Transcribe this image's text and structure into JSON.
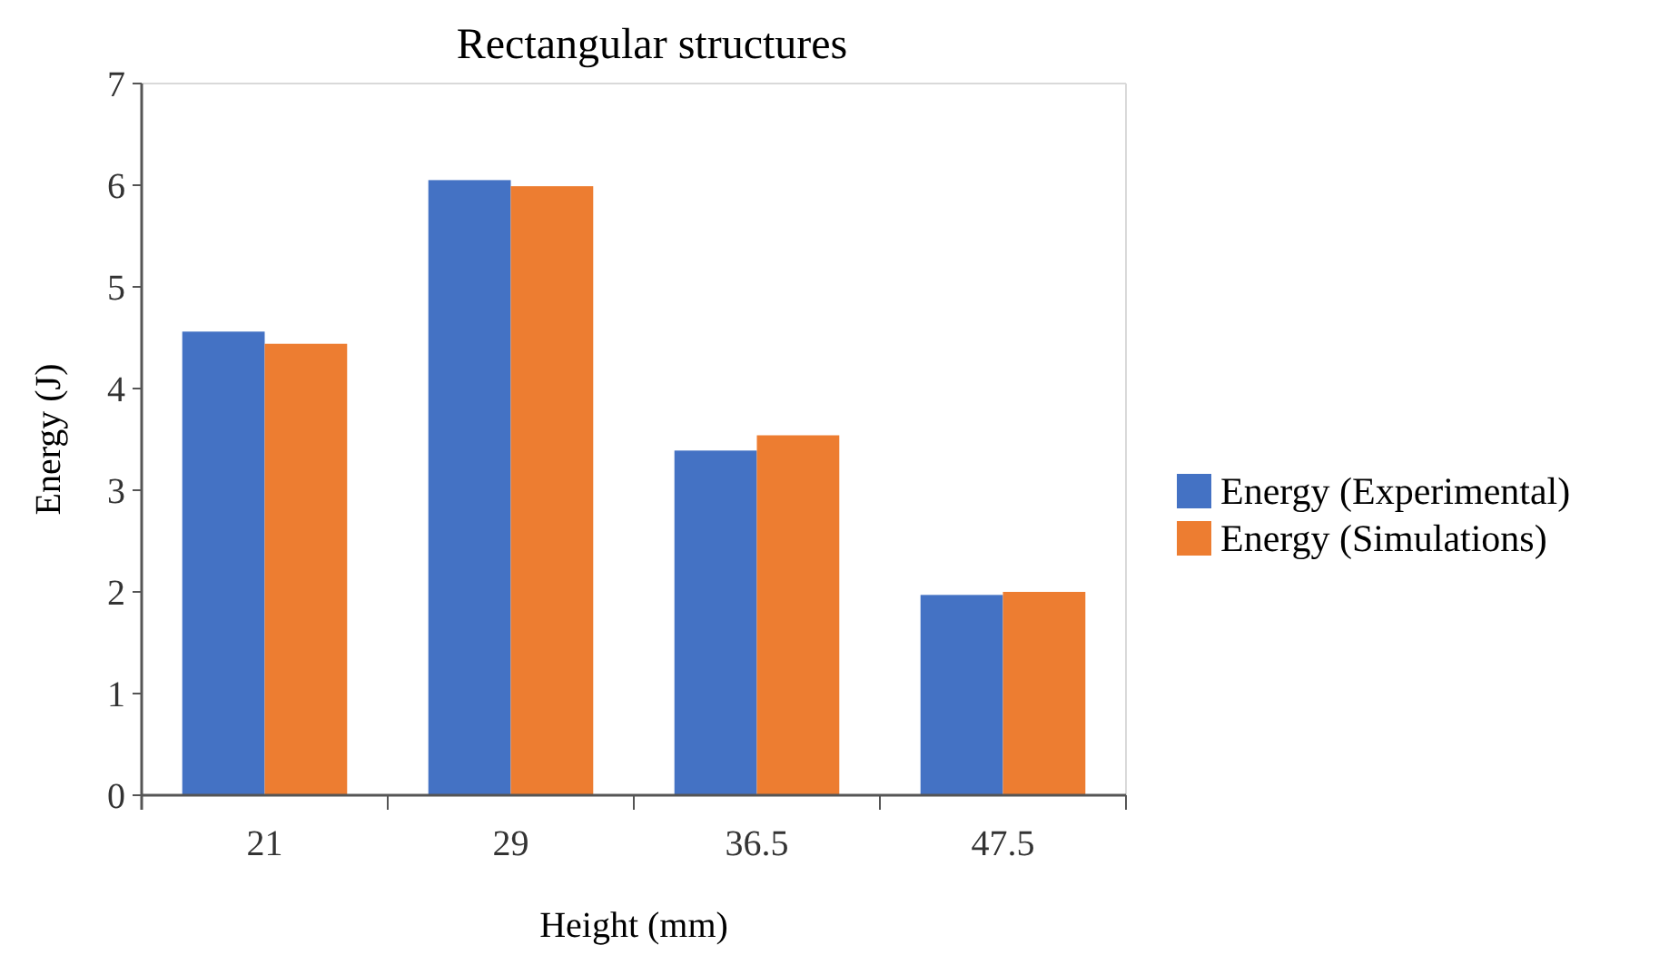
{
  "chart_data": {
    "type": "bar",
    "title": "Rectangular structures",
    "xlabel": "Height (mm)",
    "ylabel": "Energy (J)",
    "categories": [
      "21",
      "29",
      "36.5",
      "47.5"
    ],
    "series": [
      {
        "name": "Energy (Experimental)",
        "color": "#4472c4",
        "values": [
          4.56,
          6.05,
          3.39,
          1.97
        ]
      },
      {
        "name": "Energy (Simulations)",
        "color": "#ed7d31",
        "values": [
          4.44,
          5.99,
          3.54,
          2.0
        ]
      }
    ],
    "ylim": [
      0,
      7
    ],
    "yticks": [
      0,
      1,
      2,
      3,
      4,
      5,
      6,
      7
    ],
    "grid": false,
    "legend": "right"
  }
}
